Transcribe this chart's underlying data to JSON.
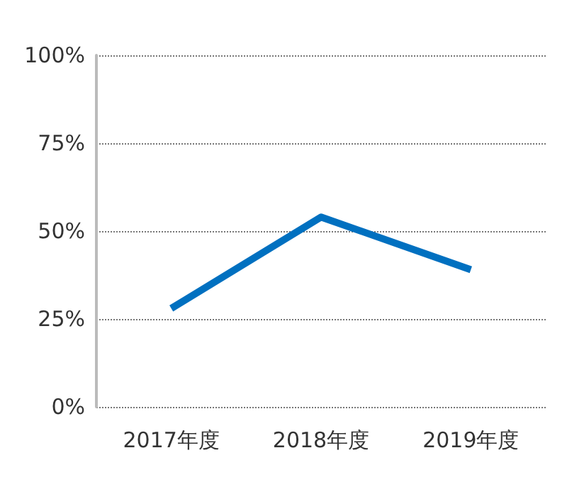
{
  "chart_data": {
    "type": "line",
    "categories": [
      "2017年度",
      "2018年度",
      "2019年度"
    ],
    "series": [
      {
        "color": "#0070c0",
        "values": [
          28,
          54,
          39
        ]
      }
    ],
    "ylim": [
      0,
      100
    ],
    "yticks": [
      {
        "value": 0,
        "label": "0%"
      },
      {
        "value": 25,
        "label": "25%"
      },
      {
        "value": 50,
        "label": "50%"
      },
      {
        "value": 75,
        "label": "75%"
      },
      {
        "value": 100,
        "label": "100%"
      }
    ],
    "grid": "y",
    "marker": "none",
    "line_style": "solid"
  }
}
